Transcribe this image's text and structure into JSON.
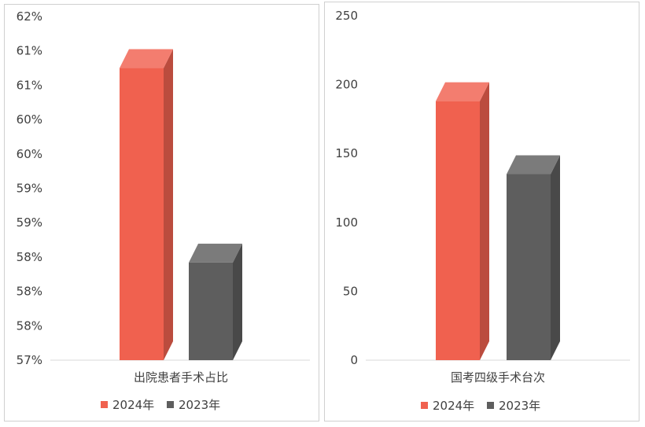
{
  "colors": {
    "s2024": "#f0614f",
    "s2023": "#5e5e5e"
  },
  "chart_data": [
    {
      "type": "bar",
      "categories": [
        "出院患者手术占比"
      ],
      "series": [
        {
          "name": "2024年",
          "values": [
            0.6125
          ]
        },
        {
          "name": "2023年",
          "values": [
            0.5842
          ]
        }
      ],
      "ylim": [
        0.57,
        0.62
      ],
      "yticks": [
        0.57,
        0.575,
        0.58,
        0.585,
        0.59,
        0.595,
        0.6,
        0.605,
        0.61,
        0.615,
        0.62
      ],
      "ytick_labels": [
        "57%",
        "58%",
        "58%",
        "58%",
        "59%",
        "59%",
        "60%",
        "60%",
        "61%",
        "61%",
        "62%"
      ],
      "legend": "bottom",
      "grid": false
    },
    {
      "type": "bar",
      "categories": [
        "国考四级手术台次"
      ],
      "series": [
        {
          "name": "2024年",
          "values": [
            188
          ]
        },
        {
          "name": "2023年",
          "values": [
            135
          ]
        }
      ],
      "ylim": [
        0,
        250
      ],
      "yticks": [
        0,
        50,
        100,
        150,
        200,
        250
      ],
      "ytick_labels": [
        "0",
        "50",
        "100",
        "150",
        "200",
        "250"
      ],
      "legend": "bottom",
      "grid": false
    }
  ]
}
